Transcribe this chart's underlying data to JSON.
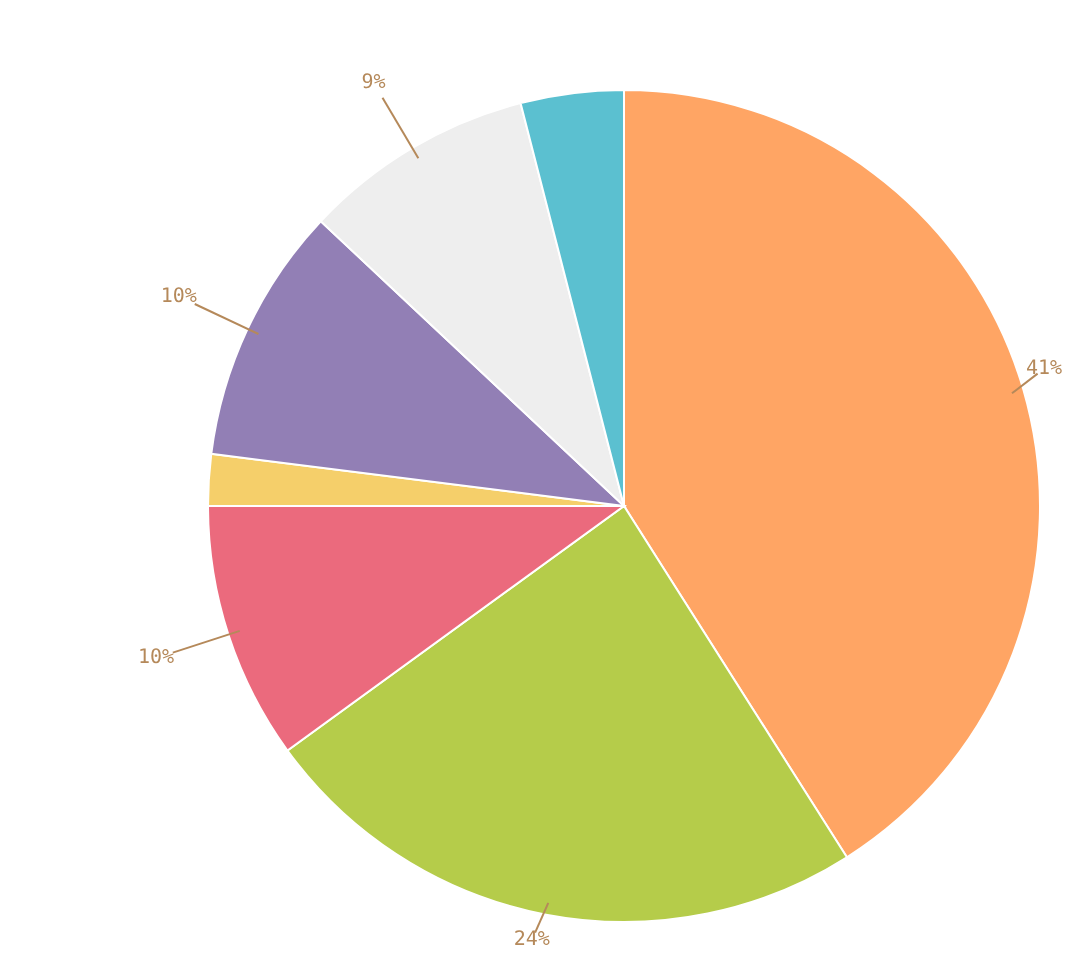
{
  "chart_data": {
    "type": "pie",
    "categories": [
      null,
      null,
      null,
      null,
      null,
      null,
      null
    ],
    "values": [
      41,
      24,
      10,
      2,
      10,
      9,
      4
    ],
    "colors": [
      "#ffa564",
      "#b5cc4a",
      "#eb6a7d",
      "#f5cf6a",
      "#927fb5",
      "#eeeeee",
      "#5bc0d0"
    ],
    "value_labels": [
      "41%",
      "24%",
      "10%",
      null,
      "10%",
      "9%",
      null
    ],
    "legend": false
  }
}
